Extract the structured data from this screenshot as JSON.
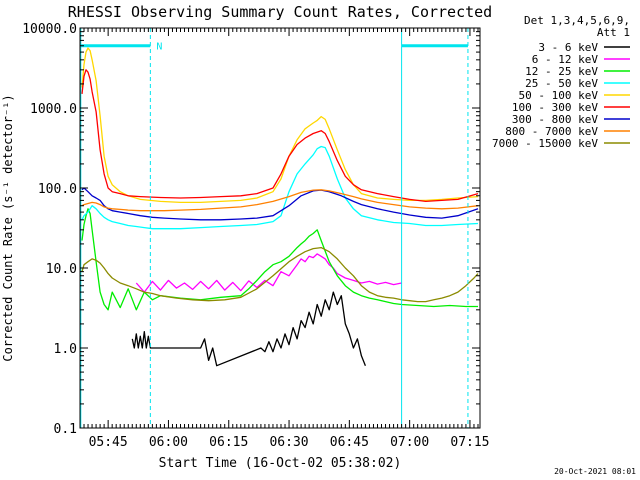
{
  "chart_data": {
    "type": "line",
    "title": "RHESSI Observing Summary Count Rates, Corrected",
    "xlabel": "Start Time (16-Oct-02 05:38:02)",
    "ylabel": "Corrected Count Rate (s⁻¹ detector⁻¹)",
    "x_unit": "minutes after 05:38:02",
    "xlim": [
      0,
      99.5
    ],
    "ylim": [
      0.1,
      10000
    ],
    "y_scale": "log",
    "grid": false,
    "legend_position": "right",
    "legend_header": [
      "Det 1,3,4,5,6,9,",
      "Att 1"
    ],
    "x_ticks": [
      {
        "value": 7.0,
        "label": "05:45"
      },
      {
        "value": 22.0,
        "label": "06:00"
      },
      {
        "value": 37.0,
        "label": "06:15"
      },
      {
        "value": 52.0,
        "label": "06:30"
      },
      {
        "value": 67.0,
        "label": "06:45"
      },
      {
        "value": 82.0,
        "label": "07:00"
      },
      {
        "value": 97.0,
        "label": "07:15"
      }
    ],
    "y_ticks": [
      {
        "value": 0.1,
        "label": "0.1"
      },
      {
        "value": 1,
        "label": "1.0"
      },
      {
        "value": 10,
        "label": "10.0"
      },
      {
        "value": 100,
        "label": "100.0"
      },
      {
        "value": 1000,
        "label": "1000.0"
      },
      {
        "value": 10000,
        "label": "10000.0"
      }
    ],
    "annotations": [
      {
        "text": "N",
        "x": 18.0,
        "y": 6000,
        "color": "#00e5ee"
      }
    ],
    "vertical_lines": [
      {
        "x": 0.2,
        "style": "solid",
        "color": "#00e5ee"
      },
      {
        "x": 17.5,
        "style": "dashed",
        "color": "#00e5ee"
      },
      {
        "x": 80.0,
        "style": "solid",
        "color": "#00e5ee"
      },
      {
        "x": 96.5,
        "style": "dashed",
        "color": "#00e5ee"
      }
    ],
    "horizontal_segments": [
      {
        "x0": 0.2,
        "x1": 17.5,
        "y": 6000,
        "color": "#00e5ee"
      },
      {
        "x0": 80.0,
        "x1": 96.5,
        "y": 6000,
        "color": "#00e5ee"
      }
    ],
    "series": [
      {
        "name": "3 - 6 keV",
        "color": "#000000",
        "x": [
          13,
          13.5,
          14,
          14.5,
          15,
          15.5,
          16,
          16.5,
          17,
          17.5,
          18,
          20,
          22,
          25,
          28,
          30,
          31,
          32,
          33,
          34,
          45,
          46,
          47,
          48,
          49,
          50,
          51,
          52,
          53,
          54,
          55,
          56,
          57,
          58,
          59,
          60,
          61,
          62,
          63,
          64,
          65,
          66,
          67,
          68,
          69,
          70,
          71
        ],
        "y": [
          1.3,
          1.0,
          1.5,
          1.0,
          1.4,
          1.0,
          1.6,
          1.0,
          1.4,
          1.0,
          1.0,
          1.0,
          1.0,
          1.0,
          1.0,
          1.0,
          1.3,
          0.7,
          1.0,
          0.6,
          1.0,
          0.9,
          1.2,
          0.9,
          1.3,
          1.0,
          1.5,
          1.1,
          1.8,
          1.3,
          2.2,
          1.8,
          2.8,
          2.0,
          3.5,
          2.5,
          4.0,
          3.0,
          5.0,
          3.5,
          4.5,
          2.0,
          1.5,
          1.0,
          1.3,
          0.8,
          0.6
        ]
      },
      {
        "name": "6 - 12 keV",
        "color": "#ff00ff",
        "x": [
          14,
          16,
          18,
          20,
          22,
          24,
          26,
          28,
          30,
          32,
          34,
          36,
          38,
          40,
          42,
          44,
          46,
          48,
          50,
          52,
          54,
          55,
          56,
          57,
          58,
          59,
          60,
          61,
          62,
          63,
          64,
          66,
          68,
          70,
          72,
          74,
          76,
          78,
          80
        ],
        "y": [
          6.5,
          5.0,
          6.8,
          5.3,
          7.0,
          5.6,
          6.5,
          5.4,
          6.8,
          5.5,
          7.0,
          5.3,
          6.6,
          5.2,
          6.9,
          5.7,
          7.0,
          6.0,
          9.0,
          8.0,
          11.0,
          13.0,
          12.0,
          14.0,
          13.5,
          15.0,
          14.0,
          13.0,
          11.0,
          10.0,
          8.5,
          7.5,
          7.0,
          6.5,
          6.8,
          6.3,
          6.6,
          6.2,
          6.5
        ]
      },
      {
        "name": "12 - 25 keV",
        "color": "#00ee00",
        "x": [
          0.5,
          1,
          1.5,
          2,
          2.5,
          3,
          4,
          5,
          6,
          7,
          8,
          10,
          12,
          14,
          16,
          18,
          20,
          25,
          30,
          35,
          40,
          42,
          44,
          46,
          48,
          50,
          52,
          54,
          55,
          56,
          57,
          58,
          59,
          60,
          62,
          64,
          66,
          68,
          70,
          72,
          74,
          76,
          78,
          80,
          84,
          88,
          92,
          96,
          99
        ],
        "y": [
          22,
          35,
          45,
          55,
          48,
          30,
          12,
          5.0,
          3.5,
          3.0,
          5.0,
          3.2,
          5.5,
          3.0,
          5.0,
          4.0,
          4.5,
          4.2,
          4.0,
          4.3,
          4.5,
          5.5,
          7.0,
          9.0,
          11.0,
          12.0,
          14.0,
          18.0,
          20.0,
          22.0,
          25.0,
          27.0,
          30.0,
          22.0,
          12.0,
          8.0,
          6.0,
          5.0,
          4.5,
          4.2,
          4.0,
          3.8,
          3.6,
          3.5,
          3.4,
          3.3,
          3.4,
          3.3,
          3.3
        ]
      },
      {
        "name": "25 - 50 keV",
        "color": "#00ffff",
        "x": [
          0.5,
          1,
          2,
          3,
          4,
          5,
          6,
          7,
          8,
          10,
          12,
          14,
          16,
          18,
          20,
          25,
          30,
          35,
          40,
          44,
          48,
          50,
          52,
          54,
          56,
          58,
          59,
          60,
          61,
          62,
          64,
          66,
          68,
          70,
          74,
          78,
          82,
          86,
          90,
          94,
          99
        ],
        "y": [
          40,
          45,
          50,
          60,
          55,
          48,
          43,
          40,
          38,
          36,
          34,
          33,
          32,
          31,
          31,
          31,
          32,
          33,
          34,
          35,
          38,
          45,
          90,
          150,
          200,
          260,
          310,
          330,
          320,
          250,
          130,
          75,
          55,
          45,
          40,
          37,
          36,
          34,
          34,
          35,
          36
        ]
      },
      {
        "name": "50 - 100 keV",
        "color": "#ffd700",
        "x": [
          0.5,
          1,
          1.5,
          2,
          2.5,
          3,
          4,
          5,
          6,
          7,
          8,
          10,
          12,
          15,
          20,
          25,
          30,
          35,
          40,
          44,
          48,
          50,
          52,
          54,
          56,
          58,
          59,
          60,
          61,
          62,
          64,
          66,
          68,
          70,
          74,
          78,
          82,
          86,
          90,
          94,
          99
        ],
        "y": [
          1800,
          3500,
          5000,
          5600,
          5200,
          4000,
          2200,
          800,
          250,
          140,
          110,
          90,
          80,
          72,
          68,
          66,
          66,
          68,
          70,
          75,
          90,
          130,
          250,
          400,
          550,
          650,
          700,
          780,
          720,
          550,
          300,
          170,
          110,
          85,
          75,
          72,
          70,
          70,
          72,
          75,
          78
        ]
      },
      {
        "name": "100 - 300 keV",
        "color": "#ff0000",
        "x": [
          0.5,
          1,
          1.5,
          2,
          2.5,
          3,
          4,
          5,
          6,
          7,
          8,
          10,
          12,
          15,
          20,
          25,
          30,
          35,
          40,
          44,
          48,
          50,
          52,
          54,
          56,
          58,
          59,
          60,
          61,
          62,
          64,
          66,
          68,
          70,
          74,
          78,
          82,
          86,
          90,
          94,
          99
        ],
        "y": [
          1500,
          2500,
          3000,
          2800,
          2300,
          1600,
          900,
          300,
          150,
          100,
          90,
          85,
          80,
          78,
          76,
          75,
          76,
          78,
          80,
          85,
          100,
          150,
          250,
          350,
          420,
          480,
          500,
          520,
          480,
          380,
          220,
          140,
          110,
          95,
          85,
          78,
          72,
          68,
          70,
          72,
          85
        ]
      },
      {
        "name": "300 - 800 keV",
        "color": "#0000cc",
        "x": [
          0.5,
          1,
          2,
          3,
          4,
          5,
          6,
          7,
          8,
          10,
          12,
          15,
          18,
          21,
          25,
          30,
          35,
          40,
          44,
          48,
          52,
          55,
          58,
          60,
          62,
          65,
          68,
          70,
          74,
          78,
          82,
          86,
          90,
          94,
          99
        ],
        "y": [
          95,
          100,
          90,
          80,
          75,
          70,
          60,
          55,
          52,
          50,
          48,
          45,
          43,
          42,
          41,
          40,
          40,
          41,
          42,
          45,
          60,
          80,
          92,
          94,
          90,
          80,
          68,
          62,
          55,
          50,
          46,
          43,
          42,
          45,
          55
        ]
      },
      {
        "name": "800 - 7000 keV",
        "color": "#ff8000",
        "x": [
          0.5,
          1,
          2,
          3,
          4,
          5,
          6,
          7,
          8,
          10,
          12,
          15,
          18,
          21,
          25,
          30,
          35,
          40,
          44,
          48,
          52,
          55,
          58,
          60,
          62,
          65,
          68,
          70,
          74,
          78,
          82,
          86,
          90,
          94,
          99
        ],
        "y": [
          60,
          62,
          64,
          66,
          65,
          62,
          58,
          56,
          55,
          54,
          53,
          52,
          52,
          52,
          53,
          54,
          56,
          58,
          62,
          68,
          78,
          88,
          94,
          95,
          92,
          85,
          78,
          73,
          66,
          62,
          58,
          56,
          55,
          56,
          60
        ]
      },
      {
        "name": "7000 - 15000 keV",
        "color": "#8b8b00",
        "x": [
          0.5,
          1,
          2,
          3,
          4,
          5,
          6,
          7,
          8,
          10,
          12,
          14,
          16,
          18,
          20,
          24,
          28,
          32,
          36,
          40,
          44,
          48,
          52,
          54,
          56,
          58,
          60,
          62,
          64,
          66,
          68,
          70,
          72,
          74,
          76,
          78,
          80,
          82,
          84,
          86,
          88,
          90,
          92,
          94,
          96,
          98,
          99
        ],
        "y": [
          9.0,
          11.0,
          12.0,
          13.0,
          12.5,
          11.5,
          10.0,
          8.5,
          7.5,
          6.5,
          6.0,
          5.5,
          5.0,
          4.8,
          4.5,
          4.2,
          4.0,
          3.9,
          4.0,
          4.3,
          5.5,
          8.0,
          12.0,
          14.0,
          16.0,
          17.5,
          18.0,
          16.0,
          13.0,
          10.0,
          8.0,
          6.0,
          5.0,
          4.5,
          4.3,
          4.2,
          4.0,
          3.9,
          3.8,
          3.8,
          4.0,
          4.2,
          4.5,
          5.0,
          6.0,
          7.5,
          8.5
        ]
      }
    ]
  },
  "footer": {
    "timestamp": "20-Oct-2021 08:01"
  }
}
